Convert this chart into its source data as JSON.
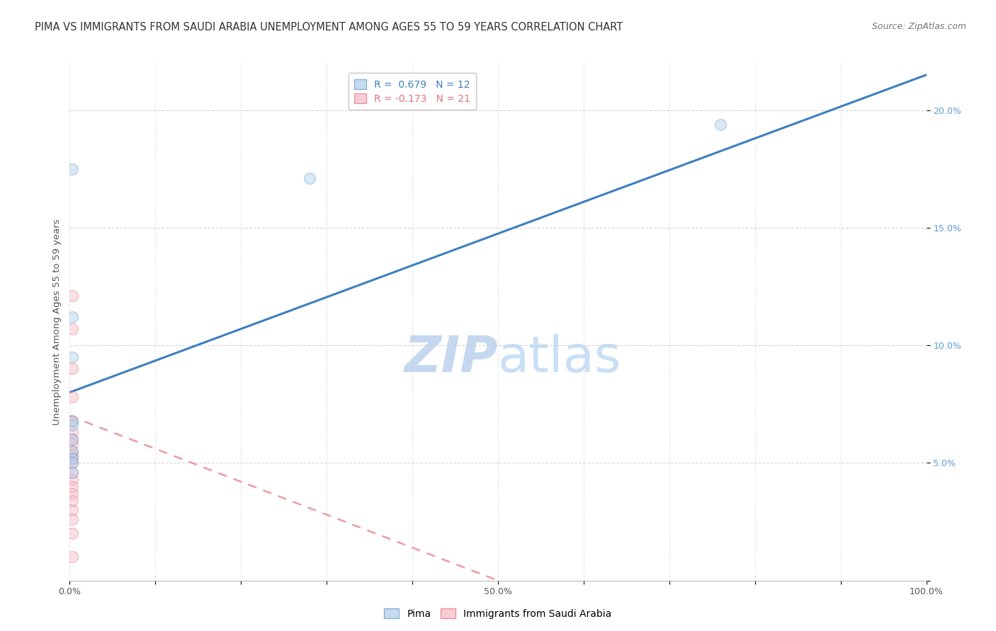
{
  "title": "PIMA VS IMMIGRANTS FROM SAUDI ARABIA UNEMPLOYMENT AMONG AGES 55 TO 59 YEARS CORRELATION CHART",
  "source": "Source: ZipAtlas.com",
  "ylabel": "Unemployment Among Ages 55 to 59 years",
  "watermark_top": "ZIP",
  "watermark_bot": "atlas",
  "xlim": [
    0,
    1.0
  ],
  "ylim": [
    0,
    0.22
  ],
  "xticks": [
    0.0,
    0.1,
    0.2,
    0.3,
    0.4,
    0.5,
    0.6,
    0.7,
    0.8,
    0.9,
    1.0
  ],
  "xticklabels": [
    "0.0%",
    "",
    "",
    "",
    "",
    "50.0%",
    "",
    "",
    "",
    "",
    "100.0%"
  ],
  "yticks": [
    0.0,
    0.05,
    0.1,
    0.15,
    0.2
  ],
  "yticklabels": [
    "",
    "5.0%",
    "10.0%",
    "15.0%",
    "20.0%"
  ],
  "legend1_label": "R =  0.679   N = 12",
  "legend2_label": "R = -0.173   N = 21",
  "pima_color": "#aecde8",
  "saudi_color": "#f5b8c4",
  "pima_edge_color": "#5b9bd5",
  "saudi_edge_color": "#e8707a",
  "pima_line_color": "#3d7fc0",
  "saudi_line_color": "#e8707a",
  "pima_scatter_x": [
    0.003,
    0.003,
    0.003,
    0.003,
    0.003,
    0.003,
    0.003,
    0.003,
    0.003,
    0.28,
    0.76,
    0.003
  ],
  "pima_scatter_y": [
    0.175,
    0.112,
    0.095,
    0.068,
    0.066,
    0.06,
    0.055,
    0.052,
    0.05,
    0.171,
    0.194,
    0.046
  ],
  "saudi_scatter_x": [
    0.003,
    0.003,
    0.003,
    0.003,
    0.003,
    0.003,
    0.003,
    0.003,
    0.003,
    0.003,
    0.003,
    0.003,
    0.003,
    0.003,
    0.003,
    0.003,
    0.003,
    0.003,
    0.003,
    0.003,
    0.003
  ],
  "saudi_scatter_y": [
    0.121,
    0.107,
    0.09,
    0.078,
    0.068,
    0.063,
    0.06,
    0.058,
    0.055,
    0.053,
    0.052,
    0.05,
    0.046,
    0.043,
    0.04,
    0.037,
    0.034,
    0.03,
    0.026,
    0.02,
    0.01
  ],
  "pima_line_x": [
    0.0,
    1.0
  ],
  "pima_line_y": [
    0.08,
    0.215
  ],
  "saudi_line_x": [
    0.0,
    0.5
  ],
  "saudi_line_y": [
    0.07,
    0.0
  ],
  "background_color": "#ffffff",
  "grid_color": "#cccccc",
  "scatter_size": 130,
  "scatter_alpha": 0.45,
  "title_fontsize": 10.5,
  "source_fontsize": 9,
  "ylabel_fontsize": 9.5,
  "tick_fontsize": 9,
  "legend_fontsize": 10,
  "watermark_color_zip": "#c5d8f0",
  "watermark_color_atlas": "#c8dff5",
  "watermark_fontsize": 52,
  "ytick_color": "#5b9bd5"
}
